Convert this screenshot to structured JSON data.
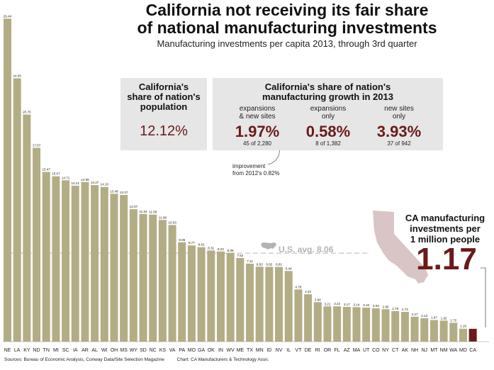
{
  "header": {
    "title_line1": "California not receiving its fair share",
    "title_line2": "of national manufacturing investments",
    "subtitle": "Manufacturing investments per capita 2013, through 3rd quarter"
  },
  "population_panel": {
    "heading_line1": "California's",
    "heading_line2": "share of nation's",
    "heading_line3": "population",
    "value": "12.12%"
  },
  "growth_panel": {
    "heading_line1": "California's share of nation's",
    "heading_line2": "manufacturing growth in 2013",
    "columns": [
      {
        "label_line1": "expansions",
        "label_line2": "& new sites",
        "value": "1.97%",
        "detail": "45 of 2,280"
      },
      {
        "label_line1": "expansions",
        "label_line2": "only",
        "value": "0.58%",
        "detail": "8 of 1,382"
      },
      {
        "label_line1": "new sites",
        "label_line2": "only",
        "value": "3.93%",
        "detail": "37 of 942"
      }
    ],
    "note_line1": "improvement",
    "note_line2": "from 2012's 0.82%"
  },
  "ca_callout": {
    "line1": "CA manufacturing",
    "line2": "investments per",
    "line3": "1 million people",
    "value": "1.17"
  },
  "average_label": "U.S. avg. 8.06",
  "footer": {
    "sources": "Sources: Bureau of Economic Analysis, Conway Data/Site Selection Magazine",
    "credit": "Chart: CA Manufacturers & Technology Assn."
  },
  "colors": {
    "bar": "#b3ad85",
    "highlight_bar": "#6b1a1a",
    "accent_text": "#6b1a1a",
    "panel_bg": "#e6e6e6",
    "average_line": "#cfcfcf",
    "state_shape": "#d9c5c5"
  },
  "chart_data": {
    "type": "bar",
    "title": "California not receiving its fair share of national manufacturing investments",
    "subtitle": "Manufacturing investments per capita 2013, through 3rd quarter",
    "categories": [
      "NE",
      "LA",
      "KY",
      "ND",
      "TN",
      "MI",
      "SC",
      "IA",
      "AR",
      "AL",
      "WI",
      "OH",
      "MS",
      "WY",
      "SD",
      "NC",
      "KS",
      "VA",
      "PA",
      "MO",
      "GA",
      "OK",
      "IN",
      "WV",
      "ME",
      "TX",
      "MN",
      "ID",
      "NV",
      "IL",
      "VT",
      "DE",
      "RI",
      "OR",
      "FL",
      "AZ",
      "MA",
      "UT",
      "CO",
      "NY",
      "CT",
      "AK",
      "NH",
      "NJ",
      "MT",
      "NM",
      "WA",
      "MD",
      "CA"
    ],
    "values": [
      29.44,
      24.0,
      20.7,
      17.67,
      15.47,
      15.07,
      14.71,
      14.21,
      14.55,
      14.27,
      14.1,
      13.48,
      13.37,
      12.07,
      11.64,
      11.58,
      11.09,
      10.63,
      9.06,
      8.77,
      8.61,
      8.31,
      8.22,
      8.09,
      7.62,
      7.11,
      6.83,
      6.82,
      6.81,
      6.44,
      4.76,
      4.32,
      3.6,
      3.21,
      3.22,
      3.17,
      3.14,
      3.1,
      3.04,
      2.95,
      2.79,
      2.72,
      2.27,
      2.13,
      1.97,
      1.92,
      1.72,
      1.18,
      1.17
    ],
    "value_labels": [
      "29.44",
      "24.00",
      "20.70",
      "17.67",
      "15.47",
      "15.07",
      "14.71",
      "14.21",
      "14.55",
      "14.27",
      "14.10",
      "13.48",
      "13.37",
      "12.07",
      "11.64",
      "11.58",
      "11.09",
      "10.63",
      "9.06",
      "8.77",
      "8.61",
      "8.31",
      "8.22",
      "8.09",
      "7.62",
      "7.11",
      "6.83",
      "6.82",
      "6.81",
      "6.44",
      "4.76",
      "4.32",
      "3.60",
      "3.21",
      "3.22",
      "3.17",
      "3.14",
      "3.10",
      "3.04",
      "2.95",
      "2.79",
      "2.72",
      "2.27",
      "2.13",
      "1.97",
      "1.92",
      "1.72",
      "1.18",
      ""
    ],
    "highlight": "CA",
    "reference_line": {
      "label": "U.S. avg. 8.06",
      "value": 8.06
    },
    "ylim": [
      0,
      30
    ],
    "grid": false,
    "legend": "none"
  }
}
